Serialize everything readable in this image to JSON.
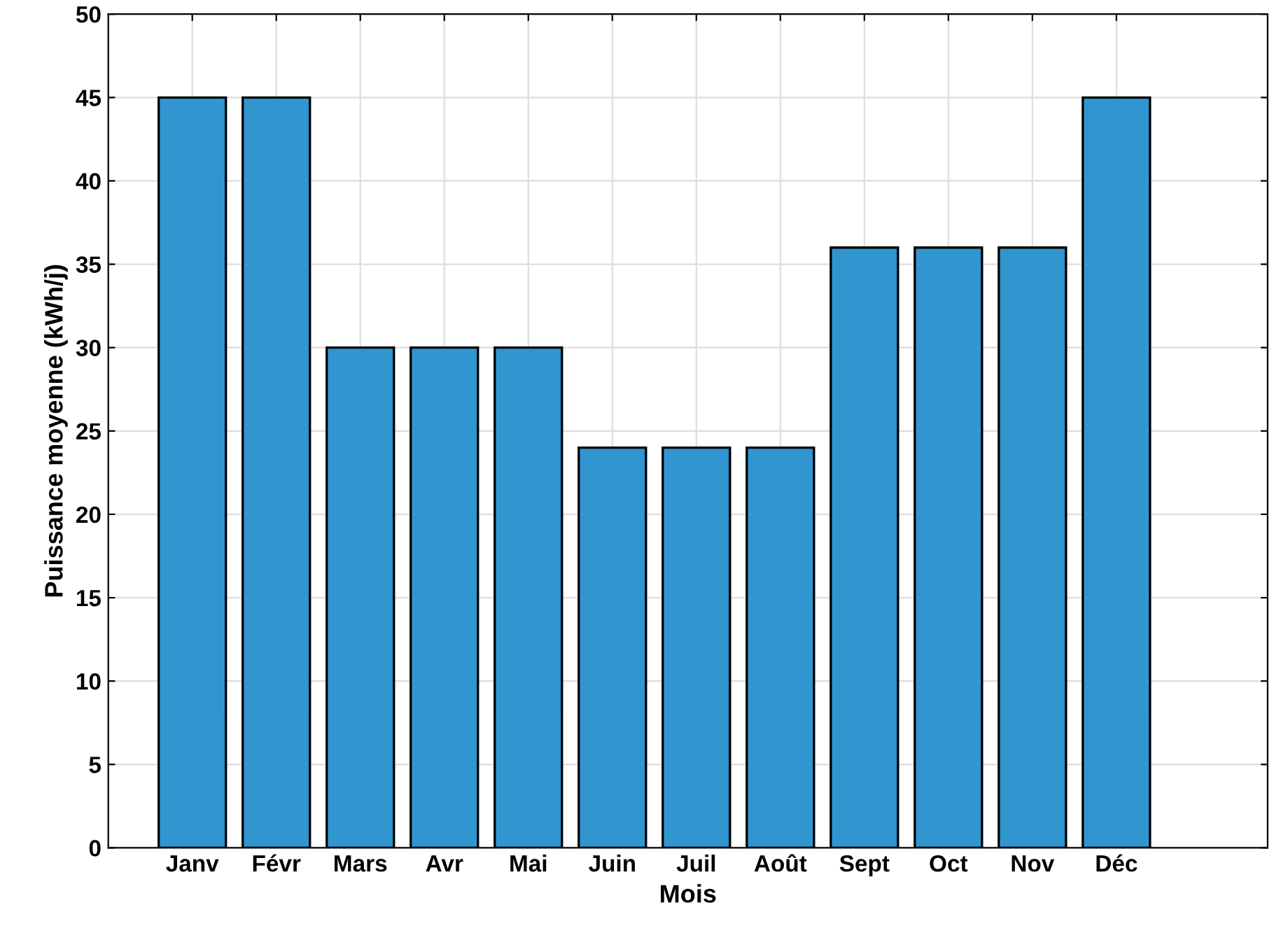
{
  "chart_data": {
    "type": "bar",
    "xlabel": "Mois",
    "ylabel": "Puissance moyenne (kWh/j)",
    "categories": [
      "Janv",
      "Févr",
      "Mars",
      "Avr",
      "Mai",
      "Juin",
      "Juil",
      "Août",
      "Sept",
      "Oct",
      "Nov",
      "Déc"
    ],
    "values": [
      45,
      45,
      30,
      30,
      30,
      24,
      24,
      24,
      36,
      36,
      36,
      45
    ],
    "color": "#3195d0",
    "ylim": [
      0,
      50
    ],
    "yticks": [
      0,
      5,
      10,
      15,
      20,
      25,
      30,
      35,
      40,
      45,
      50
    ],
    "grid": true
  }
}
